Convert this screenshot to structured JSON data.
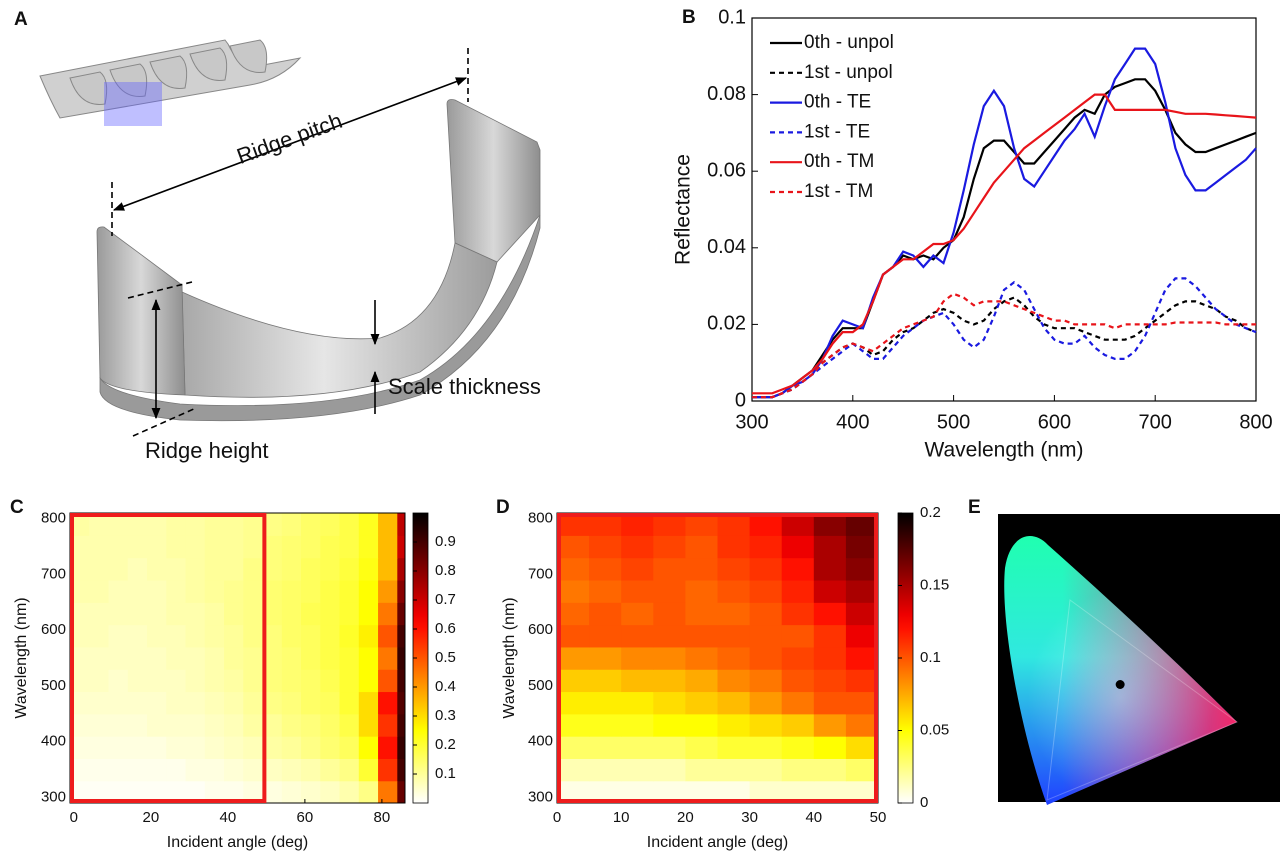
{
  "diagram": {
    "panel": "A",
    "ridge_pitch": "Ridge pitch",
    "ridge_height": "Ridge height",
    "scale_thickness": "Scale thickness"
  },
  "chart_data": [
    {
      "type": "line",
      "panel": "B",
      "xlabel": "Wavelength (nm)",
      "ylabel": "Reflectance",
      "legend": "upper left",
      "x": [
        300,
        310,
        320,
        330,
        340,
        350,
        360,
        370,
        380,
        390,
        400,
        410,
        420,
        430,
        440,
        450,
        460,
        470,
        480,
        490,
        500,
        510,
        520,
        530,
        540,
        550,
        560,
        570,
        580,
        590,
        600,
        610,
        620,
        630,
        640,
        650,
        660,
        670,
        680,
        690,
        700,
        710,
        720,
        730,
        740,
        750,
        760,
        770,
        780,
        790,
        800
      ],
      "xlim": [
        300,
        800
      ],
      "xticks": [
        300,
        400,
        500,
        600,
        700,
        800
      ],
      "ylim": [
        0,
        0.1
      ],
      "yticks": [
        0,
        0.02,
        0.04,
        0.06,
        0.08,
        0.1
      ],
      "series": [
        {
          "name": "0th - unpol",
          "color": "#000000",
          "dash": false,
          "values": [
            0.001,
            0.001,
            0.001,
            0.002,
            0.004,
            0.006,
            0.008,
            0.012,
            0.016,
            0.019,
            0.019,
            0.019,
            0.026,
            0.033,
            0.035,
            0.038,
            0.037,
            0.038,
            0.037,
            0.04,
            0.042,
            0.048,
            0.058,
            0.066,
            0.068,
            0.068,
            0.065,
            0.062,
            0.062,
            0.065,
            0.068,
            0.071,
            0.074,
            0.076,
            0.075,
            0.08,
            0.082,
            0.083,
            0.084,
            0.084,
            0.081,
            0.076,
            0.07,
            0.067,
            0.065,
            0.065,
            0.066,
            0.067,
            0.068,
            0.069,
            0.07
          ]
        },
        {
          "name": "1st - unpol",
          "color": "#000000",
          "dash": true,
          "values": [
            0.001,
            0.001,
            0.001,
            0.002,
            0.003,
            0.005,
            0.007,
            0.01,
            0.012,
            0.014,
            0.015,
            0.014,
            0.012,
            0.013,
            0.016,
            0.018,
            0.019,
            0.021,
            0.023,
            0.024,
            0.023,
            0.021,
            0.02,
            0.021,
            0.024,
            0.026,
            0.027,
            0.025,
            0.022,
            0.02,
            0.019,
            0.019,
            0.019,
            0.018,
            0.017,
            0.016,
            0.016,
            0.016,
            0.017,
            0.019,
            0.021,
            0.023,
            0.025,
            0.026,
            0.026,
            0.025,
            0.024,
            0.022,
            0.021,
            0.019,
            0.018
          ]
        },
        {
          "name": "0th - TE",
          "color": "#1a1ae0",
          "dash": false,
          "values": [
            0.001,
            0.001,
            0.001,
            0.002,
            0.004,
            0.005,
            0.007,
            0.011,
            0.017,
            0.021,
            0.02,
            0.019,
            0.027,
            0.033,
            0.035,
            0.039,
            0.038,
            0.035,
            0.038,
            0.036,
            0.044,
            0.055,
            0.067,
            0.077,
            0.081,
            0.077,
            0.066,
            0.058,
            0.056,
            0.06,
            0.064,
            0.068,
            0.071,
            0.075,
            0.069,
            0.077,
            0.084,
            0.088,
            0.092,
            0.092,
            0.088,
            0.078,
            0.066,
            0.059,
            0.055,
            0.055,
            0.057,
            0.059,
            0.061,
            0.063,
            0.066
          ]
        },
        {
          "name": "1st - TE",
          "color": "#1a1ae0",
          "dash": true,
          "values": [
            0.001,
            0.001,
            0.001,
            0.002,
            0.003,
            0.005,
            0.007,
            0.009,
            0.011,
            0.013,
            0.015,
            0.013,
            0.011,
            0.011,
            0.014,
            0.017,
            0.019,
            0.021,
            0.022,
            0.023,
            0.02,
            0.016,
            0.014,
            0.016,
            0.022,
            0.029,
            0.031,
            0.029,
            0.024,
            0.019,
            0.016,
            0.015,
            0.015,
            0.017,
            0.014,
            0.012,
            0.011,
            0.011,
            0.013,
            0.017,
            0.023,
            0.029,
            0.032,
            0.032,
            0.03,
            0.027,
            0.024,
            0.022,
            0.02,
            0.019,
            0.018
          ]
        },
        {
          "name": "0th - TM",
          "color": "#e8141a",
          "dash": false,
          "values": [
            0.002,
            0.002,
            0.002,
            0.003,
            0.004,
            0.006,
            0.008,
            0.011,
            0.015,
            0.018,
            0.018,
            0.02,
            0.026,
            0.033,
            0.035,
            0.037,
            0.037,
            0.039,
            0.041,
            0.041,
            0.042,
            0.045,
            0.049,
            0.053,
            0.057,
            0.06,
            0.063,
            0.066,
            0.068,
            0.07,
            0.072,
            0.074,
            0.076,
            0.078,
            0.08,
            0.08,
            0.076,
            0.076,
            0.076,
            0.076,
            0.076,
            0.076,
            0.0755,
            0.075,
            0.075,
            0.075,
            0.0748,
            0.0746,
            0.0744,
            0.0742,
            0.074
          ]
        },
        {
          "name": "1st - TM",
          "color": "#e8141a",
          "dash": true,
          "values": [
            0.001,
            0.001,
            0.001,
            0.002,
            0.003,
            0.005,
            0.007,
            0.01,
            0.012,
            0.014,
            0.015,
            0.014,
            0.013,
            0.015,
            0.017,
            0.019,
            0.02,
            0.021,
            0.022,
            0.026,
            0.028,
            0.027,
            0.025,
            0.026,
            0.026,
            0.026,
            0.025,
            0.024,
            0.023,
            0.022,
            0.021,
            0.021,
            0.02,
            0.02,
            0.02,
            0.02,
            0.019,
            0.02,
            0.02,
            0.02,
            0.02,
            0.02,
            0.0205,
            0.0205,
            0.0205,
            0.0205,
            0.0205,
            0.02,
            0.02,
            0.02,
            0.02
          ]
        }
      ]
    },
    {
      "type": "heatmap",
      "panel": "C",
      "xlabel": "Incident angle (deg)",
      "ylabel": "Wavelength (nm)",
      "colormap": "hot_r",
      "x": [
        1.5,
        6.5,
        11.5,
        16.5,
        21.5,
        26.5,
        31.5,
        36.5,
        41.5,
        46.5,
        51.5,
        56.5,
        61.5,
        66.5,
        71.5,
        76.5,
        81.5,
        86.5
      ],
      "y": [
        310,
        350,
        390,
        430,
        470,
        510,
        550,
        590,
        630,
        670,
        710,
        750,
        790
      ],
      "z": [
        [
          0.01,
          0.01,
          0.01,
          0.01,
          0.01,
          0.01,
          0.01,
          0.02,
          0.02,
          0.03,
          0.03,
          0.04,
          0.05,
          0.06,
          0.08,
          0.12,
          0.45,
          0.85
        ],
        [
          0.02,
          0.02,
          0.02,
          0.02,
          0.02,
          0.02,
          0.03,
          0.03,
          0.04,
          0.05,
          0.06,
          0.07,
          0.08,
          0.1,
          0.12,
          0.2,
          0.55,
          0.9
        ],
        [
          0.03,
          0.03,
          0.03,
          0.03,
          0.03,
          0.04,
          0.04,
          0.05,
          0.06,
          0.07,
          0.09,
          0.1,
          0.12,
          0.14,
          0.16,
          0.25,
          0.6,
          0.92
        ],
        [
          0.04,
          0.04,
          0.04,
          0.04,
          0.05,
          0.05,
          0.05,
          0.06,
          0.07,
          0.09,
          0.1,
          0.12,
          0.13,
          0.15,
          0.18,
          0.3,
          0.55,
          0.9
        ],
        [
          0.05,
          0.05,
          0.05,
          0.05,
          0.05,
          0.06,
          0.06,
          0.07,
          0.08,
          0.1,
          0.12,
          0.13,
          0.15,
          0.16,
          0.2,
          0.3,
          0.6,
          0.88
        ],
        [
          0.06,
          0.06,
          0.05,
          0.06,
          0.06,
          0.06,
          0.07,
          0.08,
          0.09,
          0.11,
          0.13,
          0.14,
          0.15,
          0.17,
          0.2,
          0.25,
          0.5,
          0.9
        ],
        [
          0.06,
          0.06,
          0.06,
          0.06,
          0.06,
          0.07,
          0.07,
          0.08,
          0.1,
          0.11,
          0.13,
          0.14,
          0.16,
          0.18,
          0.2,
          0.25,
          0.45,
          0.92
        ],
        [
          0.07,
          0.07,
          0.06,
          0.06,
          0.07,
          0.07,
          0.08,
          0.09,
          0.1,
          0.12,
          0.13,
          0.15,
          0.16,
          0.18,
          0.21,
          0.27,
          0.5,
          0.9
        ],
        [
          0.07,
          0.07,
          0.07,
          0.07,
          0.07,
          0.08,
          0.08,
          0.09,
          0.11,
          0.12,
          0.14,
          0.15,
          0.17,
          0.18,
          0.2,
          0.25,
          0.45,
          0.85
        ],
        [
          0.08,
          0.08,
          0.07,
          0.07,
          0.07,
          0.08,
          0.09,
          0.1,
          0.11,
          0.12,
          0.14,
          0.15,
          0.16,
          0.18,
          0.2,
          0.25,
          0.4,
          0.8
        ],
        [
          0.08,
          0.08,
          0.08,
          0.07,
          0.08,
          0.08,
          0.09,
          0.1,
          0.1,
          0.12,
          0.13,
          0.14,
          0.16,
          0.17,
          0.19,
          0.23,
          0.35,
          0.75
        ],
        [
          0.08,
          0.08,
          0.08,
          0.08,
          0.08,
          0.09,
          0.09,
          0.1,
          0.1,
          0.11,
          0.13,
          0.14,
          0.15,
          0.17,
          0.18,
          0.22,
          0.35,
          0.7
        ],
        [
          0.09,
          0.08,
          0.08,
          0.08,
          0.08,
          0.09,
          0.09,
          0.1,
          0.1,
          0.11,
          0.12,
          0.13,
          0.15,
          0.16,
          0.18,
          0.22,
          0.35,
          0.72
        ]
      ],
      "xlim": [
        -1,
        86
      ],
      "xticks": [
        0,
        20,
        40,
        60,
        80
      ],
      "ylim": [
        290,
        810
      ],
      "yticks": [
        300,
        400,
        500,
        600,
        700,
        800
      ],
      "clim": [
        0,
        1
      ],
      "cticks": [
        0.1,
        0.2,
        0.3,
        0.4,
        0.5,
        0.6,
        0.7,
        0.8,
        0.9
      ],
      "highlight_xlim": [
        -1,
        50
      ]
    },
    {
      "type": "heatmap",
      "panel": "D",
      "xlabel": "Incident angle (deg)",
      "ylabel": "Wavelength (nm)",
      "colormap": "hot_r",
      "x": [
        2.5,
        7.5,
        12.5,
        17.5,
        22.5,
        27.5,
        32.5,
        37.5,
        42.5,
        47.5
      ],
      "y": [
        310,
        350,
        390,
        430,
        470,
        510,
        550,
        590,
        630,
        670,
        710,
        750,
        790
      ],
      "z": [
        [
          0.005,
          0.005,
          0.005,
          0.005,
          0.005,
          0.005,
          0.01,
          0.01,
          0.01,
          0.01
        ],
        [
          0.015,
          0.015,
          0.015,
          0.015,
          0.02,
          0.02,
          0.02,
          0.025,
          0.025,
          0.03
        ],
        [
          0.03,
          0.03,
          0.03,
          0.03,
          0.035,
          0.04,
          0.04,
          0.045,
          0.05,
          0.06
        ],
        [
          0.045,
          0.045,
          0.045,
          0.05,
          0.05,
          0.055,
          0.06,
          0.065,
          0.08,
          0.09
        ],
        [
          0.055,
          0.055,
          0.055,
          0.06,
          0.065,
          0.07,
          0.08,
          0.09,
          0.1,
          0.1
        ],
        [
          0.065,
          0.065,
          0.07,
          0.07,
          0.075,
          0.085,
          0.09,
          0.1,
          0.105,
          0.11
        ],
        [
          0.08,
          0.08,
          0.085,
          0.085,
          0.09,
          0.095,
          0.1,
          0.105,
          0.11,
          0.12
        ],
        [
          0.1,
          0.1,
          0.1,
          0.1,
          0.1,
          0.1,
          0.1,
          0.1,
          0.11,
          0.13
        ],
        [
          0.095,
          0.1,
          0.095,
          0.1,
          0.095,
          0.095,
          0.1,
          0.11,
          0.12,
          0.14
        ],
        [
          0.09,
          0.095,
          0.1,
          0.1,
          0.095,
          0.1,
          0.105,
          0.115,
          0.14,
          0.15
        ],
        [
          0.095,
          0.1,
          0.105,
          0.1,
          0.1,
          0.105,
          0.11,
          0.12,
          0.15,
          0.16
        ],
        [
          0.1,
          0.105,
          0.11,
          0.105,
          0.1,
          0.11,
          0.115,
          0.13,
          0.15,
          0.165
        ],
        [
          0.11,
          0.11,
          0.115,
          0.11,
          0.105,
          0.11,
          0.12,
          0.14,
          0.16,
          0.17
        ]
      ],
      "xlim": [
        0,
        50
      ],
      "xticks": [
        0,
        10,
        20,
        30,
        40,
        50
      ],
      "ylim": [
        290,
        810
      ],
      "yticks": [
        300,
        400,
        500,
        600,
        700,
        800
      ],
      "clim": [
        0,
        0.2
      ],
      "cticks": [
        0,
        0.05,
        0.1,
        0.15,
        0.2
      ],
      "highlight_xlim": [
        0,
        50
      ]
    },
    {
      "type": "chromaticity",
      "panel": "E",
      "point": [
        0.39,
        0.39
      ]
    }
  ]
}
